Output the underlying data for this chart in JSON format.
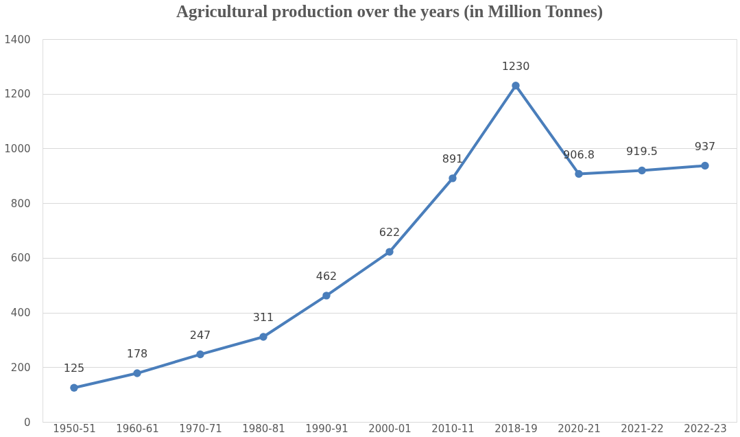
{
  "chart_data": {
    "type": "line",
    "title": "Agricultural production over the years (in Million Tonnes)",
    "categories": [
      "1950-51",
      "1960-61",
      "1970-71",
      "1980-81",
      "1990-91",
      "2000-01",
      "2010-11",
      "2018-19",
      "2020-21",
      "2021-22",
      "2022-23"
    ],
    "series": [
      {
        "color": "#4a7ebb",
        "values": [
          125,
          178,
          247,
          311,
          462,
          622,
          891,
          1230,
          906.8,
          919.5,
          937
        ]
      }
    ],
    "ylim": [
      0,
      1400
    ],
    "yticks": [
      0,
      200,
      400,
      600,
      800,
      1000,
      1200,
      1400
    ],
    "grid": "y",
    "marker": "circle",
    "line_style": "solid",
    "data_labels": true,
    "legend": false
  }
}
